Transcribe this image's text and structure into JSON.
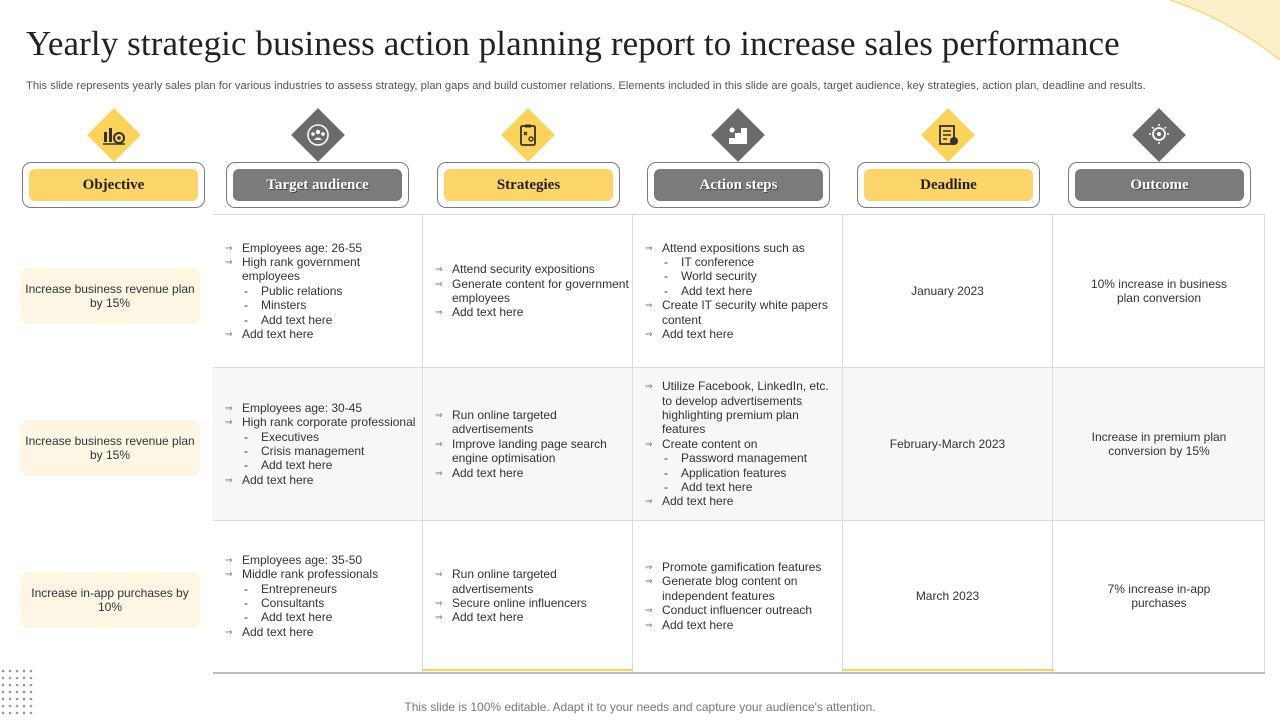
{
  "title": "Yearly strategic business action planning report to increase sales performance",
  "subtitle": "This slide represents yearly sales plan for various industries to assess strategy, plan gaps and build customer relations. Elements included in this slide are goals, target audience, key strategies, action plan, deadline and results.",
  "footer": "This slide is 100% editable. Adapt it to your needs and capture your audience's attention.",
  "colors": {
    "accent": "#fbd25a",
    "grey": "#6b6b6b",
    "objective_bg": "#fdf6e4"
  },
  "headers": [
    {
      "label": "Objective",
      "icon": "target-chart-icon",
      "style": "gold"
    },
    {
      "label": "Target audience",
      "icon": "audience-group-icon",
      "style": "grey"
    },
    {
      "label": "Strategies",
      "icon": "strategy-clipboard-icon",
      "style": "gold"
    },
    {
      "label": "Action steps",
      "icon": "steps-icon",
      "style": "grey"
    },
    {
      "label": "Deadline",
      "icon": "calendar-deadline-icon",
      "style": "gold"
    },
    {
      "label": "Outcome",
      "icon": "idea-head-icon",
      "style": "grey"
    }
  ],
  "rows": [
    {
      "objective": "Increase business revenue plan by 15%",
      "audience": {
        "items": [
          "Employees age: 26-55",
          "High rank government employees",
          "Add text here"
        ],
        "sub": [
          "Public relations",
          "Minsters",
          "Add text here"
        ]
      },
      "strategies": [
        "Attend security expositions",
        "Generate content for government employees",
        "Add text here"
      ],
      "actions": {
        "first": "Attend expositions such as",
        "sub": [
          "IT conference",
          "World security",
          "Add text here"
        ],
        "rest": [
          "Create IT security white papers content",
          "Add text here"
        ]
      },
      "deadline": "January 2023",
      "outcome": "10% increase in business plan conversion"
    },
    {
      "objective": "Increase business revenue plan by 15%",
      "audience": {
        "items": [
          "Employees age: 30-45",
          "High rank corporate professional",
          "Add text here"
        ],
        "sub": [
          "Executives",
          "Crisis management",
          "Add text here"
        ]
      },
      "strategies": [
        "Run online targeted advertisements",
        "Improve landing page search engine optimisation",
        "Add text here"
      ],
      "actions": {
        "first": "Utilize Facebook, LinkedIn, etc. to develop advertisements highlighting premium plan features",
        "second": "Create content on",
        "sub": [
          "Password management",
          "Application features",
          "Add text here"
        ],
        "rest": [
          "Add text here"
        ]
      },
      "deadline": "February-March 2023",
      "outcome": "Increase in premium plan conversion by 15%"
    },
    {
      "objective": "Increase in-app purchases by 10%",
      "audience": {
        "items": [
          "Employees age: 35-50",
          "Middle rank professionals",
          "Add text here"
        ],
        "sub": [
          "Entrepreneurs",
          "Consultants",
          "Add text here"
        ]
      },
      "strategies": [
        "Run online targeted advertisements",
        "Secure online influencers",
        "Add text here"
      ],
      "actions": {
        "items": [
          "Promote gamification features",
          "Generate blog content on independent features",
          "Conduct influencer outreach",
          "Add text here"
        ]
      },
      "deadline": "March 2023",
      "outcome": "7% increase in-app purchases"
    }
  ]
}
